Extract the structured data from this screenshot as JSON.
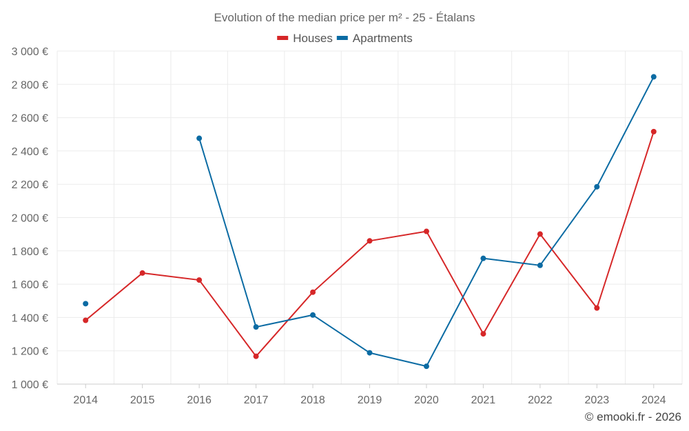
{
  "chart_data": {
    "type": "line",
    "title": "Evolution of the median price per m² - 25 - Étalans",
    "xlabel": "",
    "ylabel": "",
    "x": [
      "2014",
      "2015",
      "2016",
      "2017",
      "2018",
      "2019",
      "2020",
      "2021",
      "2022",
      "2023",
      "2024"
    ],
    "ylim": [
      1000,
      3000
    ],
    "yticks": [
      1000,
      1200,
      1400,
      1600,
      1800,
      2000,
      2200,
      2400,
      2600,
      2800,
      3000
    ],
    "ytick_labels": [
      "1 000 €",
      "1 200 €",
      "1 400 €",
      "1 600 €",
      "1 800 €",
      "2 000 €",
      "2 200 €",
      "2 400 €",
      "2 600 €",
      "2 800 €",
      "3 000 €"
    ],
    "grid": true,
    "legend_position": "top-center",
    "series": [
      {
        "name": "Houses",
        "color": "#d62728",
        "values": [
          1383,
          1667,
          1625,
          1167,
          1552,
          1860,
          1917,
          1302,
          1901,
          1457,
          2516
        ]
      },
      {
        "name": "Apartments",
        "color": "#0b6ba3",
        "values": [
          1483,
          null,
          2476,
          1343,
          1415,
          1188,
          1107,
          1755,
          1713,
          2185,
          2845
        ]
      }
    ]
  },
  "footer": {
    "credit": "© emooki.fr - 2026"
  }
}
